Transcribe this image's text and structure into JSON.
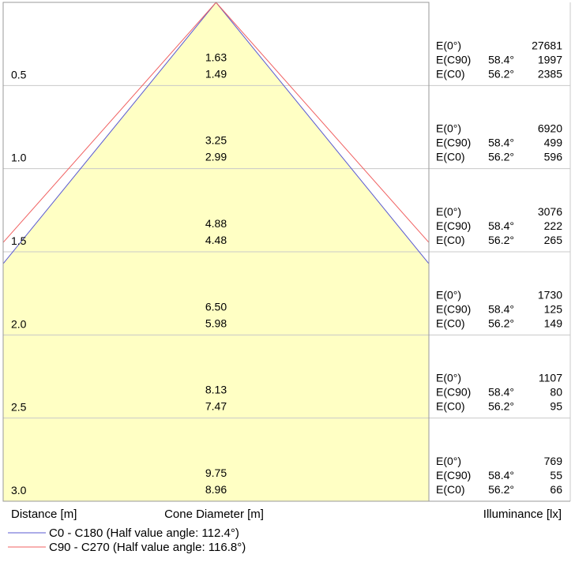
{
  "chart_data": {
    "type": "cone-diagram",
    "distance_label": "Distance [m]",
    "diameter_label": "Cone Diameter [m]",
    "illuminance_label": "Illuminance [lx]",
    "colors": {
      "fill": "#ffffc4",
      "c0_line": "#5a5ad2",
      "c90_line": "#f06060",
      "grid": "#c8c8c8",
      "frame": "#9a9a9a"
    },
    "rows": [
      {
        "distance": "0.5",
        "d_c90": "1.63",
        "d_c0": "1.49",
        "e0_label": "E(0°)",
        "e0": "27681",
        "ec90_label": "E(C90)",
        "ec90_angle": "58.4°",
        "ec90": "1997",
        "ec0_label": "E(C0)",
        "ec0_angle": "56.2°",
        "ec0": "2385"
      },
      {
        "distance": "1.0",
        "d_c90": "3.25",
        "d_c0": "2.99",
        "e0_label": "E(0°)",
        "e0": "6920",
        "ec90_label": "E(C90)",
        "ec90_angle": "58.4°",
        "ec90": "499",
        "ec0_label": "E(C0)",
        "ec0_angle": "56.2°",
        "ec0": "596"
      },
      {
        "distance": "1.5",
        "d_c90": "4.88",
        "d_c0": "4.48",
        "e0_label": "E(0°)",
        "e0": "3076",
        "ec90_label": "E(C90)",
        "ec90_angle": "58.4°",
        "ec90": "222",
        "ec0_label": "E(C0)",
        "ec0_angle": "56.2°",
        "ec0": "265"
      },
      {
        "distance": "2.0",
        "d_c90": "6.50",
        "d_c0": "5.98",
        "e0_label": "E(0°)",
        "e0": "1730",
        "ec90_label": "E(C90)",
        "ec90_angle": "58.4°",
        "ec90": "125",
        "ec0_label": "E(C0)",
        "ec0_angle": "56.2°",
        "ec0": "149"
      },
      {
        "distance": "2.5",
        "d_c90": "8.13",
        "d_c0": "7.47",
        "e0_label": "E(0°)",
        "e0": "1107",
        "ec90_label": "E(C90)",
        "ec90_angle": "58.4°",
        "ec90": "80",
        "ec0_label": "E(C0)",
        "ec0_angle": "56.2°",
        "ec0": "95"
      },
      {
        "distance": "3.0",
        "d_c90": "9.75",
        "d_c0": "8.96",
        "e0_label": "E(0°)",
        "e0": "769",
        "ec90_label": "E(C90)",
        "ec90_angle": "58.4°",
        "ec90": "55",
        "ec0_label": "E(C0)",
        "ec0_angle": "56.2°",
        "ec0": "66"
      }
    ],
    "series": [
      {
        "name": "C0 - C180 (Half value angle: 112.4°)",
        "half_angle_deg": 112.4,
        "color": "#5a5ad2"
      },
      {
        "name": "C90 - C270 (Half value angle: 116.8°)",
        "half_angle_deg": 116.8,
        "color": "#f06060"
      }
    ]
  }
}
